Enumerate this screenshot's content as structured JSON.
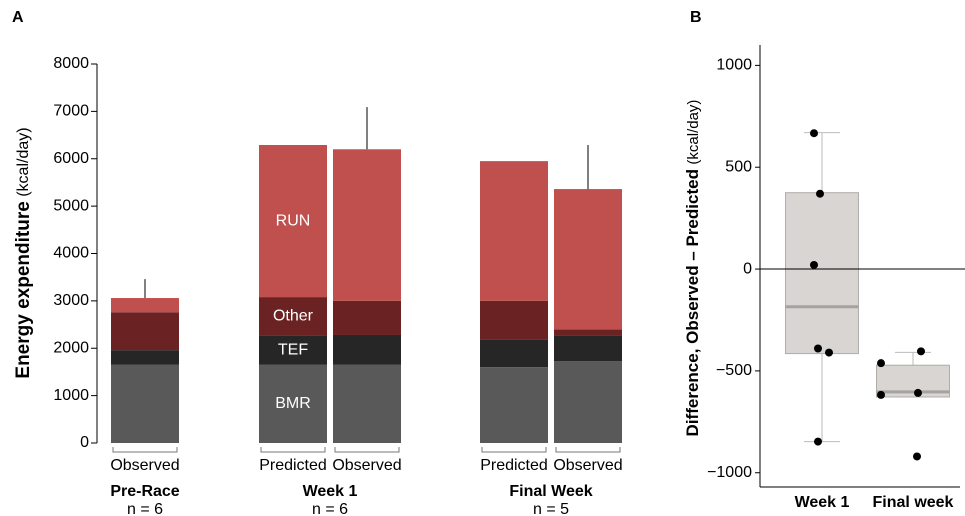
{
  "chart_data": [
    {
      "type": "bar",
      "stacked": true,
      "panel": "A",
      "ylabel": "Energy expenditure",
      "ylabel_unit": "(kcal/day)",
      "groups": [
        {
          "label": "Pre-Race",
          "note": "n = 6",
          "categories": [
            "Observed"
          ]
        },
        {
          "label": "Week 1",
          "note": "n = 6",
          "categories": [
            "Predicted",
            "Observed"
          ]
        },
        {
          "label": "Final Week",
          "note": "n = 5",
          "categories": [
            "Predicted",
            "Observed"
          ]
        }
      ],
      "series": [
        {
          "name": "BMR",
          "color": "#595959",
          "values": [
            1650,
            1650,
            1650,
            1600,
            1730
          ]
        },
        {
          "name": "TEF",
          "color": "#262626",
          "values": [
            310,
            610,
            630,
            590,
            530
          ]
        },
        {
          "name": "Other",
          "color": "#6b2222",
          "values": [
            800,
            820,
            720,
            810,
            140
          ]
        },
        {
          "name": "RUN",
          "color": "#c0504d",
          "values": [
            300,
            3210,
            3200,
            2950,
            2960
          ]
        }
      ],
      "errors": [
        400,
        null,
        890,
        null,
        930
      ],
      "ylim": [
        0,
        8000
      ],
      "yticks": [
        0,
        1000,
        2000,
        3000,
        4000,
        5000,
        6000,
        7000,
        8000
      ]
    },
    {
      "type": "box",
      "panel": "B",
      "ylabel": "Difference, Observed – Predicted",
      "ylabel_unit": "(kcal/day)",
      "categories": [
        "Week 1",
        "Final week"
      ],
      "boxes": [
        {
          "whisker_low": -847,
          "q1": -415,
          "median": -185,
          "q3": 375,
          "whisker_high": 670
        },
        {
          "whisker_low": -628,
          "q1": -628,
          "median": -603,
          "q3": -472,
          "whisker_high": -409
        }
      ],
      "points": [
        [
          667,
          370,
          20,
          -390,
          -410,
          -847
        ],
        [
          -404,
          -462,
          -618,
          -608,
          -920
        ]
      ],
      "reference_line": 0,
      "box_color": "#d8d5d2",
      "ylim": [
        -1070,
        1100
      ],
      "yticks": [
        {
          "value": -1000,
          "label": "−1000"
        },
        {
          "value": -500,
          "label": "−500"
        },
        0,
        500,
        1000
      ]
    }
  ]
}
